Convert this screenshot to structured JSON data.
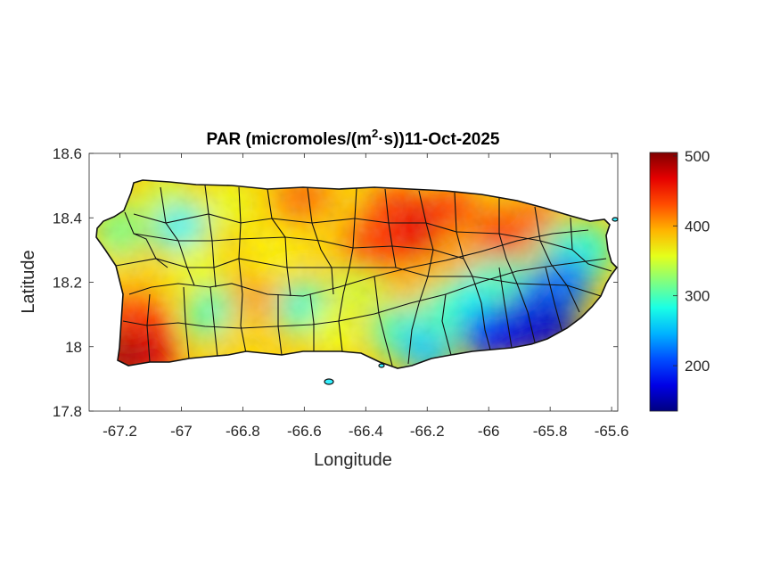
{
  "chart_data": {
    "type": "heatmap",
    "title": {
      "prefix": "PAR (micromoles/(m",
      "superscript": "2",
      "suffix": "·s))11-Oct-2025"
    },
    "xlabel": "Longitude",
    "ylabel": "Latitude",
    "xlim": [
      -67.3,
      -65.58
    ],
    "ylim": [
      17.8,
      18.6
    ],
    "xticks": [
      -67.2,
      -67,
      -66.8,
      -66.6,
      -66.4,
      -66.2,
      -66,
      -65.8,
      -65.6
    ],
    "xtick_labels": [
      "-67.2",
      "-67",
      "-66.8",
      "-66.6",
      "-66.4",
      "-66.2",
      "-66",
      "-65.8",
      "-65.6"
    ],
    "yticks": [
      17.8,
      18,
      18.2,
      18.4,
      18.6
    ],
    "ytick_labels": [
      "17.8",
      "18",
      "18.2",
      "18.4",
      "18.6"
    ],
    "colormap": "jet",
    "colorbar": {
      "range": [
        135,
        505
      ],
      "ticks": [
        200,
        300,
        400,
        500
      ],
      "tick_labels": [
        "200",
        "300",
        "400",
        "500"
      ]
    },
    "regions": [
      {
        "lon": -67.12,
        "lat": 18.05,
        "value": 450
      },
      {
        "lon": -67.1,
        "lat": 17.97,
        "value": 470
      },
      {
        "lon": -67.2,
        "lat": 17.97,
        "value": 490
      },
      {
        "lon": -67.18,
        "lat": 18.12,
        "value": 440
      },
      {
        "lon": -67.2,
        "lat": 18.25,
        "value": 380
      },
      {
        "lon": -67.2,
        "lat": 18.36,
        "value": 320
      },
      {
        "lon": -67.05,
        "lat": 18.45,
        "value": 350
      },
      {
        "lon": -67.0,
        "lat": 18.36,
        "value": 270
      },
      {
        "lon": -66.95,
        "lat": 18.25,
        "value": 360
      },
      {
        "lon": -66.9,
        "lat": 18.1,
        "value": 300
      },
      {
        "lon": -66.8,
        "lat": 18.02,
        "value": 380
      },
      {
        "lon": -66.75,
        "lat": 18.16,
        "value": 400
      },
      {
        "lon": -66.7,
        "lat": 18.29,
        "value": 370
      },
      {
        "lon": -66.85,
        "lat": 18.44,
        "value": 360
      },
      {
        "lon": -66.6,
        "lat": 18.45,
        "value": 420
      },
      {
        "lon": -66.55,
        "lat": 18.32,
        "value": 380
      },
      {
        "lon": -66.6,
        "lat": 18.12,
        "value": 290
      },
      {
        "lon": -66.5,
        "lat": 18.05,
        "value": 360
      },
      {
        "lon": -66.42,
        "lat": 18.2,
        "value": 350
      },
      {
        "lon": -66.4,
        "lat": 18.32,
        "value": 430
      },
      {
        "lon": -66.28,
        "lat": 18.28,
        "value": 455
      },
      {
        "lon": -66.3,
        "lat": 18.42,
        "value": 440
      },
      {
        "lon": -66.2,
        "lat": 18.37,
        "value": 470
      },
      {
        "lon": -66.12,
        "lat": 18.4,
        "value": 450
      },
      {
        "lon": -66.08,
        "lat": 18.3,
        "value": 400
      },
      {
        "lon": -66.25,
        "lat": 18.18,
        "value": 390
      },
      {
        "lon": -66.3,
        "lat": 18.05,
        "value": 300
      },
      {
        "lon": -66.2,
        "lat": 18.0,
        "value": 250
      },
      {
        "lon": -66.15,
        "lat": 18.1,
        "value": 300
      },
      {
        "lon": -66.05,
        "lat": 18.15,
        "value": 280
      },
      {
        "lon": -66.0,
        "lat": 18.04,
        "value": 190
      },
      {
        "lon": -65.9,
        "lat": 18.05,
        "value": 170
      },
      {
        "lon": -65.85,
        "lat": 18.15,
        "value": 200
      },
      {
        "lon": -65.95,
        "lat": 18.24,
        "value": 300
      },
      {
        "lon": -65.95,
        "lat": 18.35,
        "value": 440
      },
      {
        "lon": -65.85,
        "lat": 18.38,
        "value": 420
      },
      {
        "lon": -65.75,
        "lat": 18.3,
        "value": 300
      },
      {
        "lon": -65.68,
        "lat": 18.3,
        "value": 290
      },
      {
        "lon": -65.75,
        "lat": 18.2,
        "value": 220
      },
      {
        "lon": -65.8,
        "lat": 18.07,
        "value": 160
      }
    ],
    "grid": false,
    "colorbar_location": "right"
  }
}
